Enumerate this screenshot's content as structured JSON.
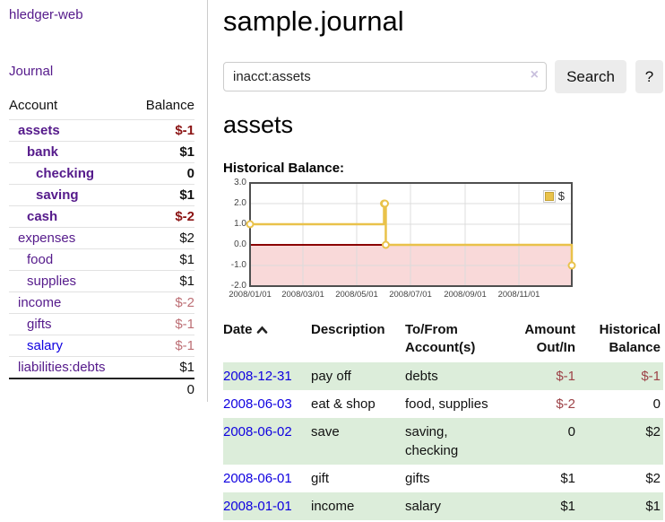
{
  "colors": {
    "purple_link": "#551a8b",
    "blue_link": "#0f00e0",
    "neg_strong": "#8b1414",
    "neg_soft": "#bd6f75",
    "table_neg": "#9d4348",
    "row_green": "#dcedda",
    "chart_gold": "#e9c24a",
    "chart_pink": "#f9d9d9",
    "chart_zero": "#8b0000",
    "button_bg": "#ececec",
    "clear_icon": "#c9c0dd"
  },
  "sidebar": {
    "brand": "hledger-web",
    "journal_link": "Journal",
    "accounts_table": {
      "headers": {
        "account": "Account",
        "balance": "Balance"
      },
      "rows": [
        {
          "name": "assets",
          "depth": 0,
          "bold": true,
          "balance": "$-1",
          "neg": "strong"
        },
        {
          "name": "bank",
          "depth": 1,
          "bold": true,
          "balance": "$1"
        },
        {
          "name": "checking",
          "depth": 2,
          "bold": true,
          "balance": "0"
        },
        {
          "name": "saving",
          "depth": 2,
          "bold": true,
          "balance": "$1"
        },
        {
          "name": "cash",
          "depth": 1,
          "bold": true,
          "balance": "$-2",
          "neg": "strong"
        },
        {
          "name": "expenses",
          "depth": 0,
          "bold": false,
          "balance": "$2"
        },
        {
          "name": "food",
          "depth": 1,
          "bold": false,
          "balance": "$1"
        },
        {
          "name": "supplies",
          "depth": 1,
          "bold": false,
          "balance": "$1"
        },
        {
          "name": "income",
          "depth": 0,
          "bold": false,
          "balance": "$-2",
          "neg": "soft"
        },
        {
          "name": "gifts",
          "depth": 1,
          "bold": false,
          "balance": "$-1",
          "neg": "soft"
        },
        {
          "name": "salary",
          "depth": 1,
          "bold": false,
          "balance": "$-1",
          "neg": "soft",
          "link": "blue"
        },
        {
          "name": "liabilities:debts",
          "depth": 0,
          "bold": false,
          "balance": "$1",
          "last": true
        }
      ],
      "total": "0"
    }
  },
  "header": {
    "title": "sample.journal"
  },
  "search": {
    "value": "inacct:assets",
    "clear_label": "×",
    "button_label": "Search",
    "help_label": "?"
  },
  "account_page": {
    "heading": "assets",
    "chart_title": "Historical Balance:"
  },
  "chart_data": {
    "type": "line",
    "step": true,
    "title": "Historical Balance",
    "series": [
      {
        "name": "$",
        "color": "#e9c24a",
        "points": [
          {
            "date": "2008-01-01",
            "value": 1
          },
          {
            "date": "2008-06-01",
            "value": 2
          },
          {
            "date": "2008-06-02",
            "value": 2
          },
          {
            "date": "2008-06-03",
            "value": 0
          },
          {
            "date": "2008-12-31",
            "value": -1
          }
        ]
      }
    ],
    "x_range": [
      "2008-01-01",
      "2008-12-31"
    ],
    "x_ticks": [
      "2008/01/01",
      "2008/03/01",
      "2008/05/01",
      "2008/07/01",
      "2008/09/01",
      "2008/11/01"
    ],
    "y_ticks": [
      3.0,
      2.0,
      1.0,
      0.0,
      -1.0,
      -2.0
    ],
    "y_range": [
      -2,
      3
    ],
    "grid": true,
    "grid_color": "#dcdcdc",
    "frame_color": "#4f4f4f",
    "zero_line_color": "#8b0000",
    "negative_region_fill": "#f9d9d9",
    "legend_position": "top-right",
    "legend": {
      "label": "$"
    }
  },
  "register_table": {
    "headers": {
      "date": "Date",
      "description": "Description",
      "accounts": "To/From Account(s)",
      "amount": "Amount Out/In",
      "balance": "Historical Balance"
    },
    "rows": [
      {
        "date": "2008-12-31",
        "description": "pay off",
        "accounts": "debts",
        "amount": "$-1",
        "amount_neg": true,
        "balance": "$-1",
        "balance_neg": true
      },
      {
        "date": "2008-06-03",
        "description": "eat & shop",
        "accounts": "food, supplies",
        "amount": "$-2",
        "amount_neg": true,
        "balance": "0",
        "balance_neg": false
      },
      {
        "date": "2008-06-02",
        "description": "save",
        "accounts": "saving, checking",
        "amount": "0",
        "amount_neg": false,
        "balance": "$2",
        "balance_neg": false
      },
      {
        "date": "2008-06-01",
        "description": "gift",
        "accounts": "gifts",
        "amount": "$1",
        "amount_neg": false,
        "balance": "$2",
        "balance_neg": false
      },
      {
        "date": "2008-01-01",
        "description": "income",
        "accounts": "salary",
        "amount": "$1",
        "amount_neg": false,
        "balance": "$1",
        "balance_neg": false
      }
    ]
  }
}
